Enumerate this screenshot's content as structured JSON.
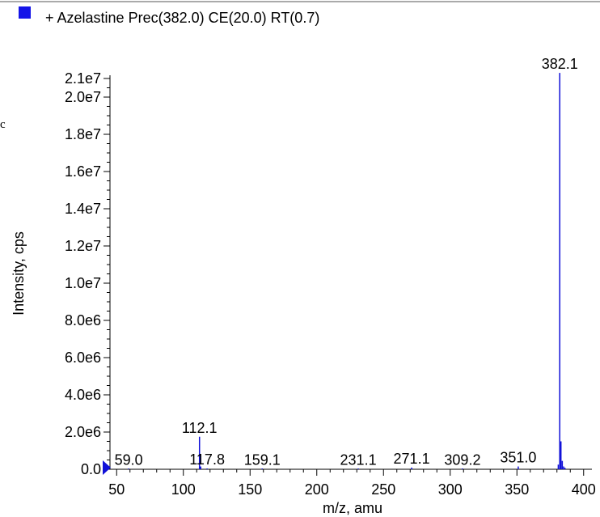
{
  "legend": {
    "label": "+ Azelastine Prec(382.0) CE(20.0) RT(0.7)",
    "swatch_color": "#1515e8"
  },
  "stray_mark": "c",
  "colors": {
    "peak": "#1010d8",
    "axis": "#000000"
  },
  "chart_data": {
    "type": "bar",
    "xlabel": "m/z, amu",
    "ylabel": "Intensity, cps",
    "xlim": [
      45,
      405
    ],
    "ylim": [
      0,
      21000000
    ],
    "x_ticks": [
      50,
      100,
      150,
      200,
      250,
      300,
      350,
      400
    ],
    "x_tick_labels": [
      "50",
      "100",
      "150",
      "200",
      "250",
      "300",
      "350",
      "400"
    ],
    "y_ticks": [
      0,
      2000000,
      4000000,
      6000000,
      8000000,
      10000000,
      12000000,
      14000000,
      16000000,
      18000000,
      20000000,
      21000000
    ],
    "y_tick_labels": [
      "0.0",
      "2.0e6",
      "4.0e6",
      "6.0e6",
      "8.0e6",
      "1.0e7",
      "1.2e7",
      "1.4e7",
      "1.6e7",
      "1.8e7",
      "2.0e7",
      "2.1e7"
    ],
    "peaks": [
      {
        "mz": 59.0,
        "intensity": 30000
      },
      {
        "mz": 112.1,
        "intensity": 1750000
      },
      {
        "mz": 113.0,
        "intensity": 150000
      },
      {
        "mz": 117.8,
        "intensity": 40000
      },
      {
        "mz": 159.1,
        "intensity": 30000
      },
      {
        "mz": 231.1,
        "intensity": 30000
      },
      {
        "mz": 271.1,
        "intensity": 90000
      },
      {
        "mz": 309.2,
        "intensity": 30000
      },
      {
        "mz": 351.0,
        "intensity": 150000
      },
      {
        "mz": 381.0,
        "intensity": 250000
      },
      {
        "mz": 382.1,
        "intensity": 21300000
      },
      {
        "mz": 383.0,
        "intensity": 1500000
      },
      {
        "mz": 384.0,
        "intensity": 450000
      },
      {
        "mz": 385.0,
        "intensity": 150000
      },
      {
        "mz": 386.0,
        "intensity": 80000
      }
    ],
    "peak_labels": [
      {
        "text": "59.0",
        "mz": 59.0,
        "intensity": 30000
      },
      {
        "text": "112.1",
        "mz": 112.1,
        "intensity": 1750000
      },
      {
        "text": "117.8",
        "mz": 117.8,
        "intensity": 40000
      },
      {
        "text": "159.1",
        "mz": 159.1,
        "intensity": 30000
      },
      {
        "text": "231.1",
        "mz": 231.1,
        "intensity": 30000
      },
      {
        "text": "271.1",
        "mz": 271.1,
        "intensity": 90000
      },
      {
        "text": "309.2",
        "mz": 309.2,
        "intensity": 30000
      },
      {
        "text": "351.0",
        "mz": 351.0,
        "intensity": 150000
      },
      {
        "text": "382.1",
        "mz": 382.1,
        "intensity": 21300000
      }
    ],
    "grid": false,
    "legend_position": "top-left"
  }
}
